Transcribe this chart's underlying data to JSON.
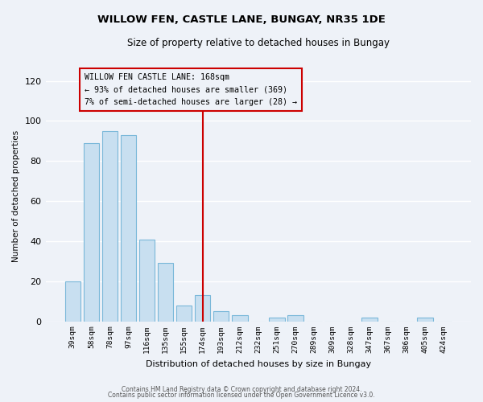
{
  "title": "WILLOW FEN, CASTLE LANE, BUNGAY, NR35 1DE",
  "subtitle": "Size of property relative to detached houses in Bungay",
  "xlabel": "Distribution of detached houses by size in Bungay",
  "ylabel": "Number of detached properties",
  "bar_color": "#c8dff0",
  "bar_edge_color": "#7ab8d9",
  "categories": [
    "39sqm",
    "58sqm",
    "78sqm",
    "97sqm",
    "116sqm",
    "135sqm",
    "155sqm",
    "174sqm",
    "193sqm",
    "212sqm",
    "232sqm",
    "251sqm",
    "270sqm",
    "289sqm",
    "309sqm",
    "328sqm",
    "347sqm",
    "367sqm",
    "386sqm",
    "405sqm",
    "424sqm"
  ],
  "values": [
    20,
    89,
    95,
    93,
    41,
    29,
    8,
    13,
    5,
    3,
    0,
    2,
    3,
    0,
    0,
    0,
    2,
    0,
    0,
    2,
    0
  ],
  "vline_index": 7,
  "vline_color": "#cc0000",
  "ann_title": "WILLOW FEN CASTLE LANE: 168sqm",
  "ann_line1": "← 93% of detached houses are smaller (369)",
  "ann_line2": "7% of semi-detached houses are larger (28) →",
  "ylim": [
    0,
    125
  ],
  "yticks": [
    0,
    20,
    40,
    60,
    80,
    100,
    120
  ],
  "bg_color": "#eef2f8",
  "grid_color": "#ffffff",
  "footer1": "Contains HM Land Registry data © Crown copyright and database right 2024.",
  "footer2": "Contains public sector information licensed under the Open Government Licence v3.0."
}
